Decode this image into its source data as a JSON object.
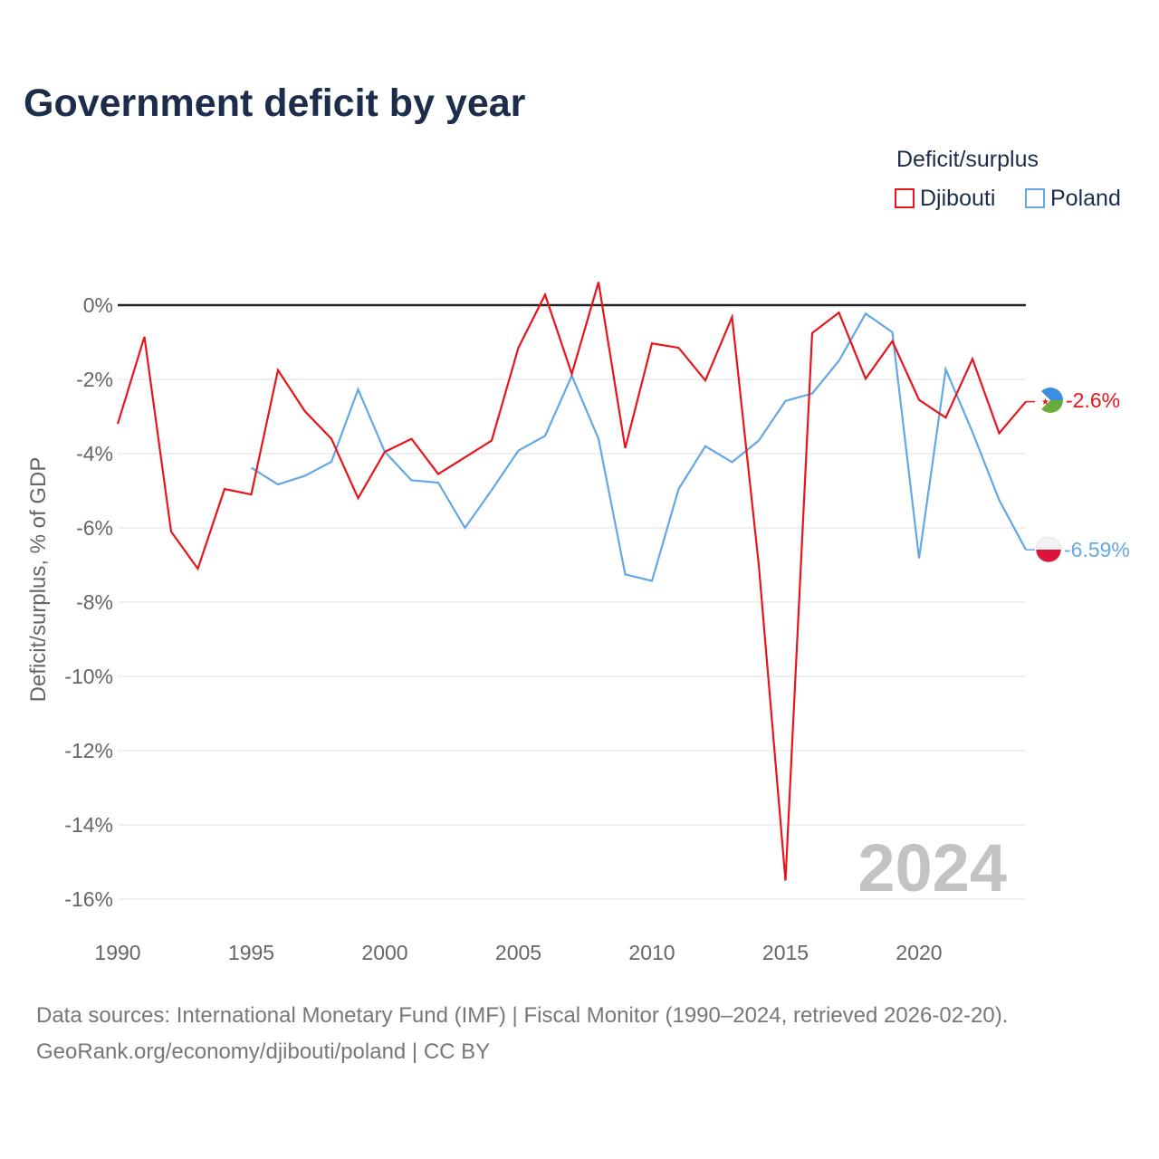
{
  "title": "Government deficit by year",
  "legend": {
    "title": "Deficit/surplus",
    "items": [
      {
        "label": "Djibouti",
        "color": "#e8141c"
      },
      {
        "label": "Poland",
        "color": "#63a8e5"
      }
    ]
  },
  "year_watermark": "2024",
  "source": {
    "line1": "Data sources: International Monetary Fund (IMF) | Fiscal Monitor (1990–2024, retrieved 2026-02-20).",
    "line2": "GeoRank.org/economy/djibouti/poland | CC BY"
  },
  "chart_data": {
    "type": "line",
    "title": "Government deficit by year",
    "xlabel": "",
    "ylabel": "Deficit/surplus, % of GDP",
    "xlim": [
      1990,
      2024
    ],
    "ylim": [
      -16.5,
      1
    ],
    "x_ticks": [
      1990,
      1995,
      2000,
      2005,
      2010,
      2015,
      2020
    ],
    "y_ticks": [
      0,
      -2,
      -4,
      -6,
      -8,
      -10,
      -12,
      -14,
      -16
    ],
    "y_tick_labels": [
      "0%",
      "-2%",
      "-4%",
      "-6%",
      "-8%",
      "-10%",
      "-12%",
      "-14%",
      "-16%"
    ],
    "grid": true,
    "legend_position": "top-right",
    "series": [
      {
        "name": "Djibouti",
        "color": "#e8141c",
        "end_label": "-2.6%",
        "x": [
          1990,
          1991,
          1992,
          1993,
          1994,
          1995,
          1996,
          1997,
          1998,
          1999,
          2000,
          2001,
          2002,
          2003,
          2004,
          2005,
          2006,
          2007,
          2008,
          2009,
          2010,
          2011,
          2012,
          2013,
          2014,
          2015,
          2016,
          2017,
          2018,
          2019,
          2020,
          2021,
          2022,
          2023,
          2024
        ],
        "values": [
          -3.2,
          -0.85,
          -6.1,
          -7.1,
          -4.95,
          -5.1,
          -1.75,
          -2.85,
          -3.6,
          -5.2,
          -3.95,
          -3.6,
          -4.55,
          -4.1,
          -3.65,
          -1.15,
          0.28,
          -1.85,
          0.62,
          -3.85,
          -1.03,
          -1.15,
          -2.03,
          -0.32,
          -7.0,
          -15.5,
          -0.75,
          -0.2,
          -1.98,
          -0.97,
          -2.55,
          -3.03,
          -1.45,
          -3.45,
          -2.6
        ]
      },
      {
        "name": "Poland",
        "color": "#63a8e5",
        "end_label": "-6.59%",
        "x": [
          1995,
          1996,
          1997,
          1998,
          1999,
          2000,
          2001,
          2002,
          2003,
          2004,
          2005,
          2006,
          2007,
          2008,
          2009,
          2010,
          2011,
          2012,
          2013,
          2014,
          2015,
          2016,
          2017,
          2018,
          2019,
          2020,
          2021,
          2022,
          2023,
          2024
        ],
        "values": [
          -4.38,
          -4.83,
          -4.6,
          -4.22,
          -2.27,
          -3.95,
          -4.72,
          -4.78,
          -6.0,
          -4.98,
          -3.92,
          -3.52,
          -1.9,
          -3.6,
          -7.25,
          -7.43,
          -4.95,
          -3.8,
          -4.23,
          -3.65,
          -2.58,
          -2.38,
          -1.5,
          -0.23,
          -0.73,
          -6.82,
          -1.73,
          -3.42,
          -5.25,
          -6.59
        ]
      }
    ]
  }
}
